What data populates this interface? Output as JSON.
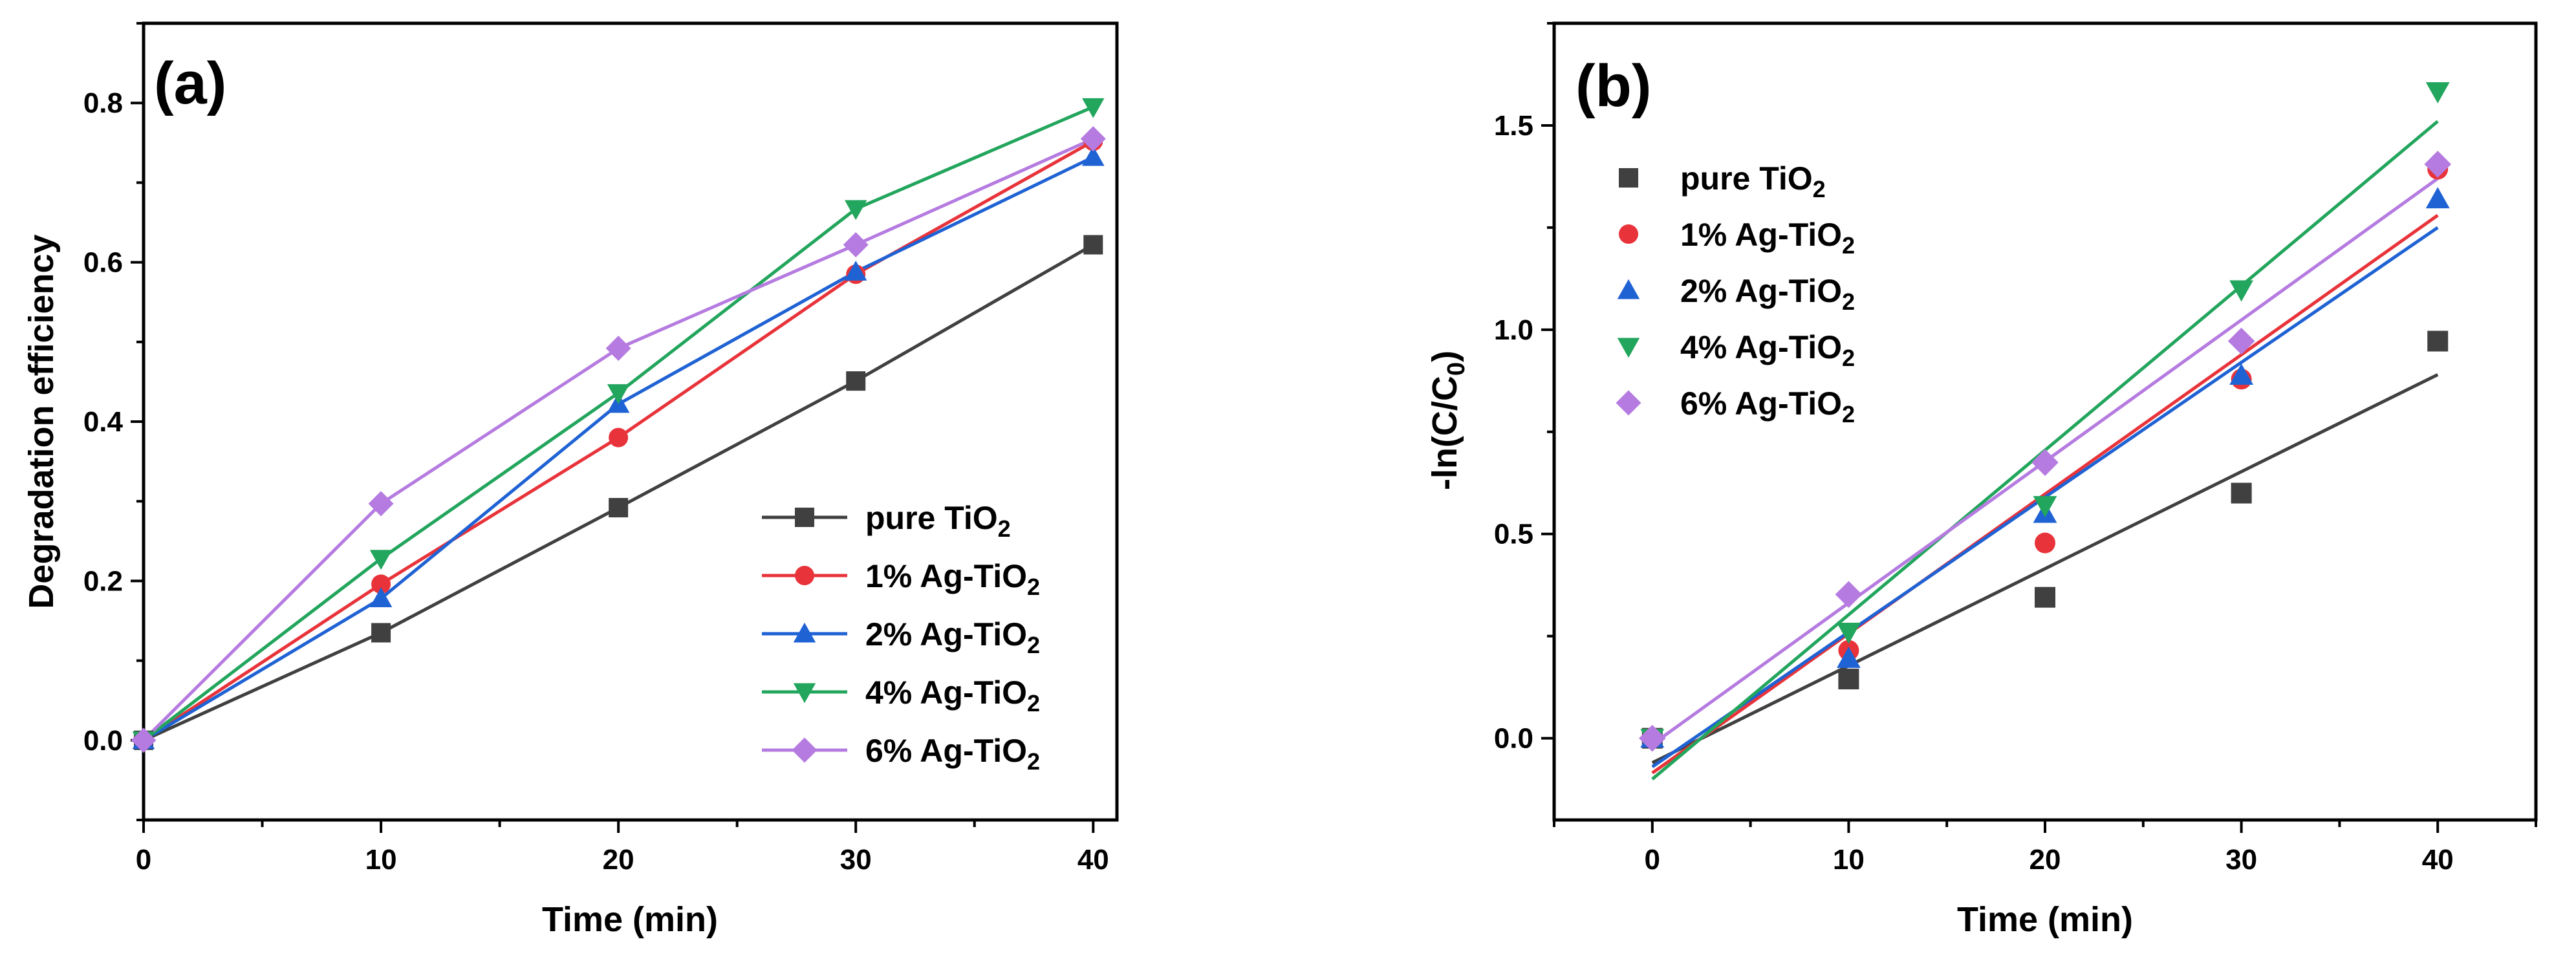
{
  "chart_data": [
    {
      "panel": "(a)",
      "type": "line",
      "xlabel": "Time (min)",
      "ylabel": "Degradation efficiency",
      "xlim": [
        0,
        41
      ],
      "ylim": [
        -0.1,
        0.9
      ],
      "xticks": [
        0,
        10,
        20,
        30,
        40
      ],
      "yticks": [
        0.0,
        0.2,
        0.4,
        0.6,
        0.8
      ],
      "ytick_labels": [
        "0.0",
        "0.2",
        "0.4",
        "0.6",
        "0.8"
      ],
      "legend_position": "bottom-right",
      "x": [
        0,
        10,
        20,
        30,
        40
      ],
      "series": [
        {
          "name": "pure TiO",
          "sub": "2",
          "color": "#404040",
          "marker": "square",
          "values": [
            0,
            0.135,
            0.292,
            0.451,
            0.622
          ]
        },
        {
          "name": "1% Ag-TiO",
          "sub": "2",
          "color": "#e8333a",
          "marker": "circle",
          "values": [
            0,
            0.196,
            0.38,
            0.585,
            0.752
          ]
        },
        {
          "name": "2% Ag-TiO",
          "sub": "2",
          "color": "#1f62d4",
          "marker": "triangle-up",
          "values": [
            0,
            0.178,
            0.422,
            0.588,
            0.732
          ]
        },
        {
          "name": "4% Ag-TiO",
          "sub": "2",
          "color": "#22a55c",
          "marker": "triangle-down",
          "values": [
            0,
            0.228,
            0.436,
            0.667,
            0.795
          ]
        },
        {
          "name": "6% Ag-TiO",
          "sub": "2",
          "color": "#b57be0",
          "marker": "diamond",
          "values": [
            0,
            0.297,
            0.492,
            0.622,
            0.755
          ]
        }
      ]
    },
    {
      "panel": "(b)",
      "type": "scatter",
      "xlabel": "Time (min)",
      "ylabel": "-ln(C/C",
      "ylabel_sub": "0",
      "ylabel_tail": ")",
      "xlim": [
        -5,
        45
      ],
      "ylim": [
        -0.2,
        1.75
      ],
      "xticks": [
        0,
        10,
        20,
        30,
        40
      ],
      "yticks": [
        0.0,
        0.5,
        1.0,
        1.5
      ],
      "ytick_labels": [
        "0.0",
        "0.5",
        "1.0",
        "1.5"
      ],
      "legend_position": "top-left",
      "x": [
        0,
        10,
        20,
        30,
        40
      ],
      "series": [
        {
          "name": "pure TiO",
          "sub": "2",
          "color": "#404040",
          "marker": "square",
          "values": [
            0,
            0.145,
            0.345,
            0.6,
            0.972
          ],
          "fit": [
            -0.06,
            0.89
          ]
        },
        {
          "name": "1% Ag-TiO",
          "sub": "2",
          "color": "#e8333a",
          "marker": "circle",
          "values": [
            0,
            0.215,
            0.478,
            0.879,
            1.393
          ],
          "fit": [
            -0.085,
            1.28
          ]
        },
        {
          "name": "2% Ag-TiO",
          "sub": "2",
          "color": "#1f62d4",
          "marker": "triangle-up",
          "values": [
            0,
            0.195,
            0.55,
            0.888,
            1.32
          ],
          "fit": [
            -0.07,
            1.25
          ]
        },
        {
          "name": "4% Ag-TiO",
          "sub": "2",
          "color": "#22a55c",
          "marker": "triangle-down",
          "values": [
            0,
            0.26,
            0.57,
            1.098,
            1.583
          ],
          "fit": [
            -0.1,
            1.51
          ]
        },
        {
          "name": "6% Ag-TiO",
          "sub": "2",
          "color": "#b57be0",
          "marker": "diamond",
          "values": [
            0,
            0.352,
            0.675,
            0.972,
            1.405
          ],
          "fit": [
            -0.015,
            1.37
          ]
        }
      ]
    }
  ]
}
